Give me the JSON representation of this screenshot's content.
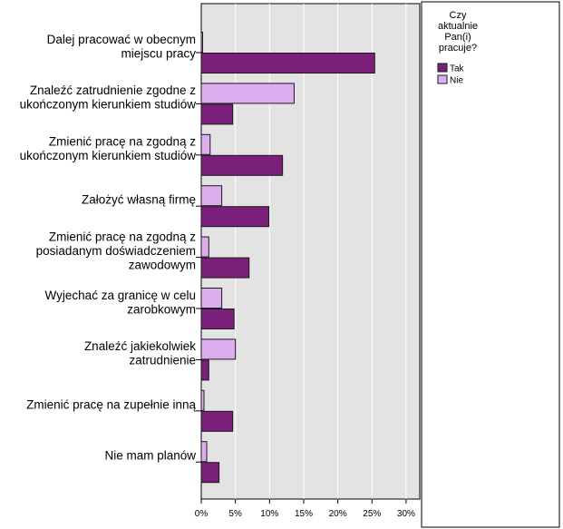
{
  "chart_data": {
    "type": "bar",
    "orientation": "horizontal",
    "categories": [
      [
        "Dalej pracować w obecnym",
        "miejscu pracy"
      ],
      [
        "Znaleźć zatrudnienie zgodne z",
        "ukończonym kierunkiem studiów"
      ],
      [
        "Zmienić pracę na zgodną z",
        "ukończonym kierunkiem studiów"
      ],
      [
        "Założyć własną firmę"
      ],
      [
        "Zmienić pracę na zgodną z",
        "posiadanym doświadczeniem",
        "zawodowym"
      ],
      [
        "Wyjechać za granicę w celu",
        "zarobkowym"
      ],
      [
        "Znaleźć jakiekolwiek",
        "zatrudnienie"
      ],
      [
        "Zmienić pracę na zupełnie inną"
      ],
      [
        "Nie mam planów"
      ]
    ],
    "series": [
      {
        "name": "Nie",
        "color": "#dcaef0",
        "values": [
          0.2,
          13.6,
          1.3,
          3.0,
          1.1,
          3.0,
          5.0,
          0.4,
          0.8
        ]
      },
      {
        "name": "Tak",
        "color": "#7a1f7a",
        "values": [
          25.4,
          4.6,
          11.9,
          9.9,
          7.0,
          4.8,
          1.1,
          4.6,
          2.6
        ]
      }
    ],
    "xlim": [
      0,
      32
    ],
    "xticks": [
      0,
      5,
      10,
      15,
      20,
      25,
      30
    ],
    "xtick_labels": [
      "0%",
      "5%",
      "10%",
      "15%",
      "20%",
      "25%",
      "30%"
    ],
    "legend": {
      "title": [
        "Czy",
        "aktualnie",
        "Pan(i)",
        "pracuje?"
      ],
      "items": [
        {
          "label": "Tak",
          "color": "#7a1f7a"
        },
        {
          "label": "Nie",
          "color": "#dcaef0"
        }
      ],
      "placement": "right"
    },
    "grid": true,
    "plot_background": "#e3e3e3"
  }
}
